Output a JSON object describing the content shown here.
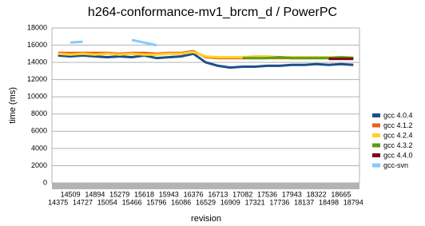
{
  "chart_data": {
    "type": "line",
    "title": "h264-conformance-mv1_brcm_d / PowerPC",
    "x_label": "revision",
    "y_label": "time (ms)",
    "categories": [
      "14375",
      "14509",
      "14727",
      "14894",
      "15054",
      "15279",
      "15466",
      "15618",
      "15796",
      "15943",
      "16086",
      "16376",
      "16529",
      "16713",
      "16909",
      "17082",
      "17321",
      "17536",
      "17736",
      "17943",
      "18137",
      "18322",
      "18498",
      "18665",
      "18794"
    ],
    "ylim": [
      0,
      18000
    ],
    "yticks": [
      0,
      2000,
      4000,
      6000,
      8000,
      10000,
      12000,
      14000,
      16000,
      18000
    ],
    "grid": true,
    "legend": "right",
    "series": [
      {
        "name": "gcc 4.0.4",
        "color": "#1f4e8c",
        "values": [
          14800,
          14700,
          14800,
          14700,
          14600,
          14700,
          14600,
          14800,
          14500,
          14600,
          14700,
          15000,
          14000,
          13600,
          13400,
          13500,
          13500,
          13600,
          13600,
          13700,
          13700,
          13800,
          13700,
          13800,
          13700
        ]
      },
      {
        "name": "gcc 4.1.2",
        "color": "#e8601c",
        "values": [
          15100,
          15100,
          15100,
          15100,
          15100,
          15000,
          15100,
          15100,
          15000,
          15100,
          15100,
          15300,
          14600,
          14500,
          14500,
          14500,
          14500,
          14500,
          14500,
          14500,
          14500,
          14500,
          14500,
          14500,
          14500
        ]
      },
      {
        "name": "gcc 4.2.4",
        "color": "#ffd320",
        "values": [
          15000,
          14900,
          15000,
          14900,
          15000,
          14900,
          15000,
          14900,
          14900,
          15000,
          15000,
          15200,
          14700,
          14600,
          14600,
          14600,
          14700,
          14700,
          14600,
          14600,
          14600,
          14600,
          14600,
          14600,
          14600
        ]
      },
      {
        "name": "gcc 4.3.2",
        "color": "#579d1c",
        "values": [
          null,
          null,
          null,
          null,
          null,
          null,
          null,
          null,
          null,
          null,
          null,
          null,
          null,
          null,
          null,
          14500,
          14500,
          14500,
          14600,
          14500,
          14500,
          14500,
          14500,
          14600,
          14500
        ]
      },
      {
        "name": "gcc 4.4.0",
        "color": "#7e0021",
        "values": [
          null,
          null,
          null,
          null,
          null,
          null,
          null,
          null,
          null,
          null,
          null,
          null,
          null,
          null,
          null,
          null,
          null,
          null,
          null,
          null,
          null,
          null,
          14400,
          14400,
          14400
        ]
      },
      {
        "name": "gcc-svn",
        "color": "#83caff",
        "values": [
          null,
          16300,
          16400,
          null,
          null,
          null,
          16600,
          16300,
          16000,
          null,
          null,
          null,
          null,
          null,
          null,
          null,
          null,
          null,
          null,
          null,
          null,
          null,
          null,
          null,
          null
        ]
      }
    ]
  }
}
